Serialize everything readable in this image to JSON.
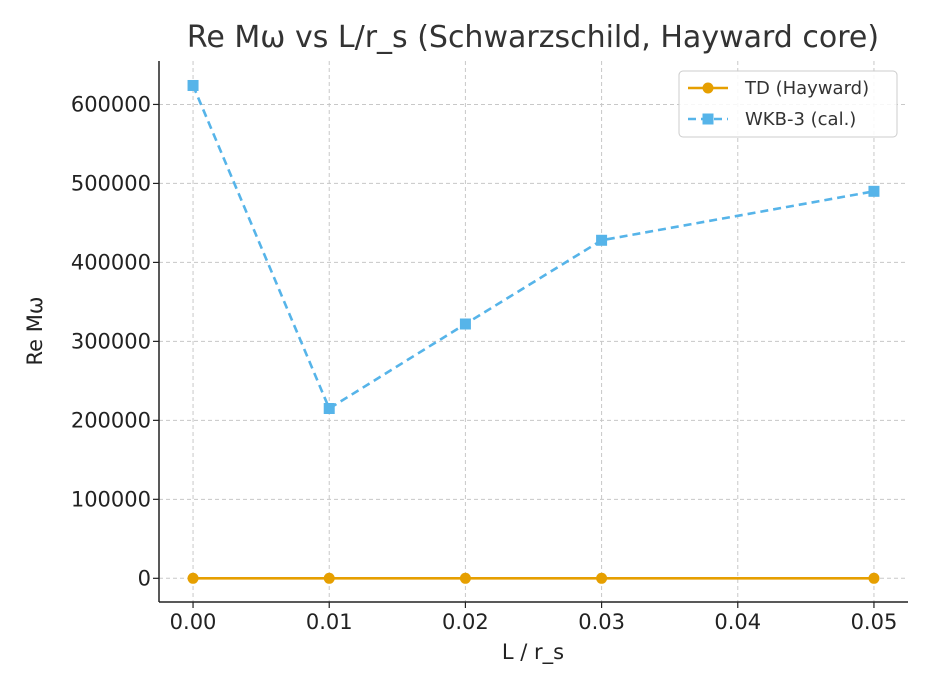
{
  "chart_data": {
    "type": "line",
    "title": "Re Mω vs L/r_s (Schwarzschild, Hayward core)",
    "xlabel": "L / r_s",
    "ylabel": "Re Mω",
    "xlim": [
      -0.0025,
      0.0525
    ],
    "ylim": [
      -30000,
      655000
    ],
    "x_ticks": [
      0.0,
      0.01,
      0.02,
      0.03,
      0.04,
      0.05
    ],
    "x_tick_labels": [
      "0.00",
      "0.01",
      "0.02",
      "0.03",
      "0.04",
      "0.05"
    ],
    "y_ticks": [
      0,
      100000,
      200000,
      300000,
      400000,
      500000,
      600000
    ],
    "y_tick_labels": [
      "0",
      "100000",
      "200000",
      "300000",
      "400000",
      "500000",
      "600000"
    ],
    "grid": true,
    "legend_position": "top-right",
    "series": [
      {
        "name": "TD (Hayward)",
        "color": "#E69F00",
        "line_style": "solid",
        "marker": "circle",
        "x": [
          0.0,
          0.01,
          0.02,
          0.03,
          0.05
        ],
        "y": [
          0,
          0,
          0,
          0,
          0
        ]
      },
      {
        "name": "WKB-3 (cal.)",
        "color": "#56B4E9",
        "line_style": "dashed",
        "marker": "square",
        "x": [
          0.0,
          0.01,
          0.02,
          0.03,
          0.05
        ],
        "y": [
          624000,
          215000,
          322000,
          428000,
          490000
        ]
      }
    ]
  }
}
